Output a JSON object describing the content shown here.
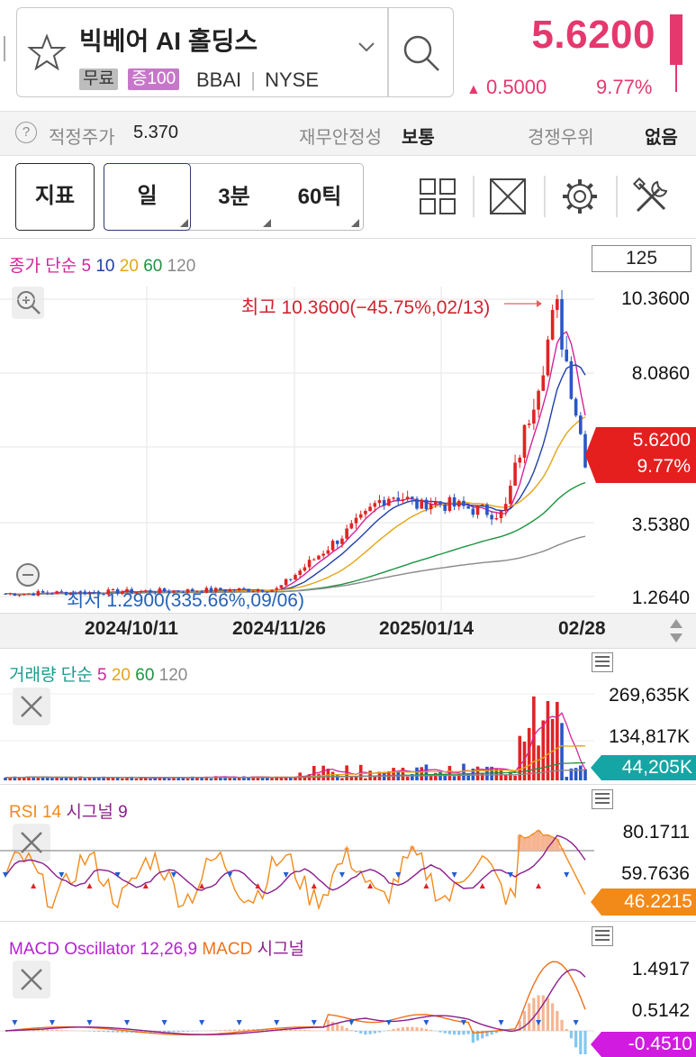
{
  "header": {
    "stock_name": "빅베어 AI 홀딩스",
    "tag_free": "무료",
    "tag_margin": "증100",
    "ticker": "BBAI",
    "exchange": "NYSE",
    "price": "5.6200",
    "change_arrow": "▲",
    "change_abs": "0.5000",
    "change_pct": "9.77%",
    "price_color": "#e4386e"
  },
  "info": {
    "fair_price_label": "적정주가",
    "fair_price_value": "5.370",
    "stability_label": "재무안정성",
    "stability_value": "보통",
    "competitive_label": "경쟁우위",
    "competitive_value": "없음"
  },
  "toolbar": {
    "indicator_button": "지표",
    "tab_day": "일",
    "tab_3min": "3분",
    "tab_60tick": "60틱",
    "icons": [
      "layout-grid-icon",
      "expand-icon",
      "gear-icon",
      "tools-icon"
    ]
  },
  "price_chart": {
    "legend_prefix": "종가 단순",
    "ma_labels": [
      "5",
      "10",
      "20",
      "60",
      "120"
    ],
    "ma_colors": [
      "#d4239a",
      "#1f3fa8",
      "#e3a514",
      "#1e9440",
      "#8a8a8a"
    ],
    "candle_count": "125",
    "axis_values": [
      "10.3600",
      "8.0860",
      "3.5380",
      "1.2640"
    ],
    "current_price": "5.6200",
    "current_pct": "9.77%",
    "high_annotation": "최고 10.3600(−45.75%,02/13)",
    "low_annotation": "최저 1.2900(335.66%,09/06)",
    "dates": [
      "2024/10/11",
      "2024/11/26",
      "2025/01/14",
      "02/28"
    ]
  },
  "volume_chart": {
    "legend_prefix": "거래량 단순",
    "ma_labels": [
      "5",
      "20",
      "60",
      "120"
    ],
    "axis_values": [
      "269,635K",
      "134,817K"
    ],
    "current": "44,205K"
  },
  "rsi_chart": {
    "legend_rsi": "RSI 14",
    "legend_signal": "시그널 9",
    "axis_values": [
      "80.1711",
      "59.7636"
    ],
    "current": "46.2215"
  },
  "macd_chart": {
    "legend_osc": "MACD Oscillator 12,26,9",
    "legend_macd": "MACD",
    "legend_signal": "시그널",
    "axis_values": [
      "1.4917",
      "0.5142"
    ],
    "current": "-0.4510"
  }
}
